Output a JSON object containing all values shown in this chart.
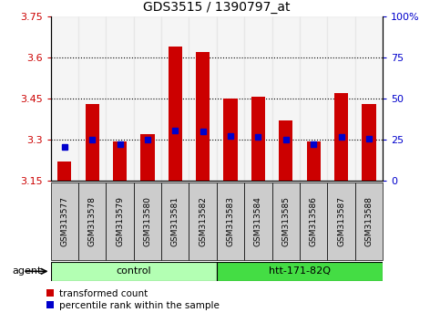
{
  "title": "GDS3515 / 1390797_at",
  "samples": [
    "GSM313577",
    "GSM313578",
    "GSM313579",
    "GSM313580",
    "GSM313581",
    "GSM313582",
    "GSM313583",
    "GSM313584",
    "GSM313585",
    "GSM313586",
    "GSM313587",
    "GSM313588"
  ],
  "red_values": [
    3.22,
    3.43,
    3.295,
    3.32,
    3.64,
    3.62,
    3.45,
    3.455,
    3.37,
    3.295,
    3.47,
    3.43
  ],
  "blue_values": [
    3.275,
    3.3,
    3.285,
    3.3,
    3.335,
    3.33,
    3.315,
    3.31,
    3.3,
    3.285,
    3.31,
    3.305
  ],
  "ymin": 3.15,
  "ymax": 3.75,
  "yticks": [
    3.15,
    3.3,
    3.45,
    3.6,
    3.75
  ],
  "ytick_labels": [
    "3.15",
    "3.3",
    "3.45",
    "3.6",
    "3.75"
  ],
  "right_ytick_labels": [
    "0",
    "25",
    "50",
    "75",
    "100%"
  ],
  "grid_values": [
    3.3,
    3.45,
    3.6
  ],
  "groups": [
    {
      "label": "control",
      "start": 0,
      "end": 6,
      "color": "#b3ffb3"
    },
    {
      "label": "htt-171-82Q",
      "start": 6,
      "end": 12,
      "color": "#44dd44"
    }
  ],
  "agent_label": "agent",
  "bar_color": "#cc0000",
  "blue_color": "#0000cc",
  "bar_width": 0.5,
  "title_fontsize": 10,
  "left_tick_color": "#cc0000",
  "right_tick_color": "#0000cc",
  "background_color": "#ffffff",
  "tick_bg_color": "#cccccc",
  "legend_red_label": "transformed count",
  "legend_blue_label": "percentile rank within the sample"
}
